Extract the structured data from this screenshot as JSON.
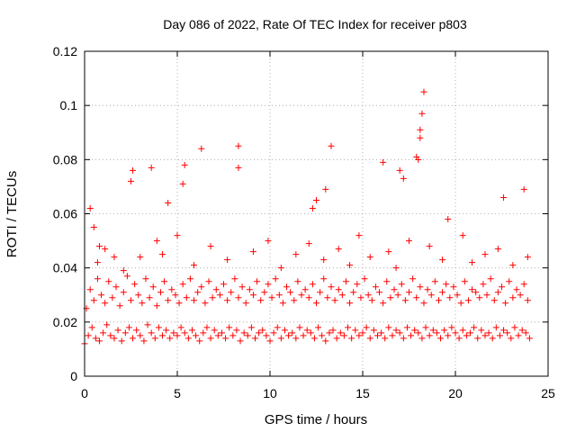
{
  "chart_data": {
    "type": "scatter",
    "title": "Day 086 of 2022, Rate Of TEC Index for receiver p803",
    "xlabel": "GPS time / hours",
    "ylabel": "ROTI / TECUs",
    "xlim": [
      0,
      25
    ],
    "ylim": [
      0,
      0.12
    ],
    "xticks": [
      "0",
      "5",
      "10",
      "15",
      "20",
      "25"
    ],
    "yticks": [
      "0",
      "0.02",
      "0.04",
      "0.06",
      "0.08",
      "0.1",
      "0.12"
    ],
    "xtick_values": [
      0,
      5,
      10,
      15,
      20,
      25
    ],
    "ytick_values": [
      0,
      0.02,
      0.04,
      0.06,
      0.08,
      0.1,
      0.12
    ],
    "grid": true,
    "marker": "+",
    "color": "#ff0000",
    "series": [
      {
        "name": "ROTI",
        "x": [
          0.0,
          0.2,
          0.4,
          0.6,
          0.8,
          1.0,
          1.2,
          1.4,
          1.6,
          1.8,
          2.0,
          2.2,
          2.4,
          2.6,
          2.8,
          3.0,
          3.2,
          3.4,
          3.6,
          3.8,
          4.0,
          4.2,
          4.4,
          4.6,
          4.8,
          5.0,
          5.2,
          5.4,
          5.6,
          5.8,
          6.0,
          6.2,
          6.4,
          6.6,
          6.8,
          7.0,
          7.2,
          7.4,
          7.6,
          7.8,
          8.0,
          8.2,
          8.4,
          8.6,
          8.8,
          9.0,
          9.2,
          9.4,
          9.6,
          9.8,
          10.0,
          10.2,
          10.4,
          10.6,
          10.8,
          11.0,
          11.2,
          11.4,
          11.6,
          11.8,
          12.0,
          12.2,
          12.4,
          12.6,
          12.8,
          13.0,
          13.2,
          13.4,
          13.6,
          13.8,
          14.0,
          14.2,
          14.4,
          14.6,
          14.8,
          15.0,
          15.2,
          15.4,
          15.6,
          15.8,
          16.0,
          16.2,
          16.4,
          16.6,
          16.8,
          17.0,
          17.2,
          17.4,
          17.6,
          17.8,
          18.0,
          18.2,
          18.4,
          18.6,
          18.8,
          19.0,
          19.2,
          19.4,
          19.6,
          19.8,
          20.0,
          20.2,
          20.4,
          20.6,
          20.8,
          21.0,
          21.2,
          21.4,
          21.6,
          21.8,
          22.0,
          22.2,
          22.4,
          22.6,
          22.8,
          23.0,
          23.2,
          23.4,
          23.6,
          23.8,
          24.0,
          0.1,
          0.3,
          0.5,
          0.7,
          0.9,
          1.1,
          1.3,
          1.5,
          1.7,
          1.9,
          2.1,
          2.3,
          2.5,
          2.7,
          2.9,
          3.1,
          3.3,
          3.5,
          3.7,
          3.9,
          4.1,
          4.3,
          4.5,
          4.7,
          4.9,
          5.1,
          5.3,
          5.5,
          5.7,
          5.9,
          6.1,
          6.3,
          6.5,
          6.7,
          6.9,
          7.1,
          7.3,
          7.5,
          7.7,
          7.9,
          8.1,
          8.3,
          8.5,
          8.7,
          8.9,
          9.1,
          9.3,
          9.5,
          9.7,
          9.9,
          10.1,
          10.3,
          10.5,
          10.7,
          10.9,
          11.1,
          11.3,
          11.5,
          11.7,
          11.9,
          12.1,
          12.3,
          12.5,
          12.7,
          12.9,
          13.1,
          13.3,
          13.5,
          13.7,
          13.9,
          14.1,
          14.3,
          14.5,
          14.7,
          14.9,
          15.1,
          15.3,
          15.5,
          15.7,
          15.9,
          16.1,
          16.3,
          16.5,
          16.7,
          16.9,
          17.1,
          17.3,
          17.5,
          17.7,
          17.9,
          18.1,
          18.3,
          18.5,
          18.7,
          18.9,
          19.1,
          19.3,
          19.5,
          19.7,
          19.9,
          20.1,
          20.3,
          20.5,
          20.7,
          20.9,
          21.1,
          21.3,
          21.5,
          21.7,
          21.9,
          22.1,
          22.3,
          22.5,
          22.7,
          22.9,
          23.1,
          23.3,
          23.5,
          23.7,
          23.9,
          0.3,
          0.5,
          0.8,
          1.6,
          2.5,
          2.6,
          3.6,
          4.5,
          5.3,
          5.4,
          6.3,
          8.3,
          8.3,
          12.3,
          12.5,
          13.0,
          13.3,
          16.1,
          17.0,
          17.2,
          17.9,
          18.0,
          18.1,
          18.2,
          18.1,
          18.3,
          23.7,
          22.6,
          19.6,
          20.4,
          0.7,
          1.1,
          2.1,
          3.0,
          3.9,
          4.2,
          5.0,
          5.9,
          6.8,
          7.7,
          9.1,
          9.9,
          10.6,
          11.4,
          12.1,
          12.9,
          13.7,
          14.3,
          14.8,
          15.4,
          16.4,
          16.8,
          17.5,
          18.6,
          19.3,
          20.9,
          21.6,
          22.3,
          23.1,
          23.9
        ],
        "y": [
          0.012,
          0.015,
          0.018,
          0.014,
          0.013,
          0.016,
          0.019,
          0.015,
          0.014,
          0.017,
          0.013,
          0.016,
          0.018,
          0.014,
          0.017,
          0.015,
          0.013,
          0.019,
          0.016,
          0.014,
          0.018,
          0.015,
          0.017,
          0.014,
          0.016,
          0.015,
          0.018,
          0.016,
          0.014,
          0.017,
          0.015,
          0.013,
          0.016,
          0.018,
          0.014,
          0.017,
          0.015,
          0.016,
          0.014,
          0.018,
          0.015,
          0.017,
          0.013,
          0.016,
          0.015,
          0.018,
          0.014,
          0.016,
          0.017,
          0.015,
          0.013,
          0.016,
          0.018,
          0.014,
          0.017,
          0.015,
          0.016,
          0.014,
          0.018,
          0.015,
          0.017,
          0.016,
          0.014,
          0.018,
          0.015,
          0.013,
          0.016,
          0.017,
          0.014,
          0.016,
          0.015,
          0.018,
          0.014,
          0.017,
          0.015,
          0.016,
          0.018,
          0.014,
          0.017,
          0.015,
          0.016,
          0.014,
          0.018,
          0.015,
          0.017,
          0.016,
          0.014,
          0.018,
          0.015,
          0.017,
          0.016,
          0.014,
          0.018,
          0.015,
          0.017,
          0.016,
          0.014,
          0.017,
          0.015,
          0.018,
          0.016,
          0.014,
          0.017,
          0.015,
          0.016,
          0.018,
          0.014,
          0.017,
          0.015,
          0.016,
          0.014,
          0.018,
          0.015,
          0.017,
          0.016,
          0.014,
          0.018,
          0.015,
          0.017,
          0.016,
          0.014,
          0.025,
          0.032,
          0.028,
          0.036,
          0.03,
          0.027,
          0.035,
          0.029,
          0.033,
          0.026,
          0.031,
          0.037,
          0.028,
          0.034,
          0.03,
          0.027,
          0.036,
          0.029,
          0.033,
          0.026,
          0.031,
          0.035,
          0.028,
          0.032,
          0.03,
          0.027,
          0.034,
          0.029,
          0.036,
          0.028,
          0.031,
          0.033,
          0.027,
          0.035,
          0.029,
          0.032,
          0.03,
          0.034,
          0.028,
          0.031,
          0.036,
          0.029,
          0.033,
          0.027,
          0.032,
          0.03,
          0.035,
          0.028,
          0.031,
          0.034,
          0.029,
          0.036,
          0.03,
          0.027,
          0.033,
          0.031,
          0.028,
          0.035,
          0.03,
          0.032,
          0.029,
          0.034,
          0.027,
          0.031,
          0.036,
          0.029,
          0.033,
          0.028,
          0.032,
          0.03,
          0.035,
          0.027,
          0.031,
          0.034,
          0.029,
          0.036,
          0.03,
          0.028,
          0.033,
          0.031,
          0.027,
          0.035,
          0.029,
          0.032,
          0.03,
          0.034,
          0.028,
          0.031,
          0.036,
          0.029,
          0.033,
          0.027,
          0.032,
          0.03,
          0.035,
          0.028,
          0.031,
          0.034,
          0.029,
          0.033,
          0.03,
          0.027,
          0.035,
          0.028,
          0.032,
          0.031,
          0.029,
          0.034,
          0.03,
          0.036,
          0.028,
          0.031,
          0.033,
          0.027,
          0.035,
          0.029,
          0.032,
          0.03,
          0.034,
          0.028,
          0.062,
          0.055,
          0.048,
          0.044,
          0.072,
          0.076,
          0.077,
          0.064,
          0.071,
          0.078,
          0.084,
          0.085,
          0.077,
          0.062,
          0.065,
          0.069,
          0.085,
          0.079,
          0.076,
          0.073,
          0.081,
          0.08,
          0.091,
          0.097,
          0.088,
          0.105,
          0.069,
          0.066,
          0.058,
          0.052,
          0.042,
          0.047,
          0.039,
          0.044,
          0.05,
          0.045,
          0.052,
          0.041,
          0.048,
          0.043,
          0.046,
          0.05,
          0.04,
          0.045,
          0.049,
          0.043,
          0.047,
          0.041,
          0.052,
          0.044,
          0.046,
          0.04,
          0.05,
          0.048,
          0.043,
          0.042,
          0.045,
          0.047,
          0.041,
          0.044
        ]
      }
    ]
  }
}
